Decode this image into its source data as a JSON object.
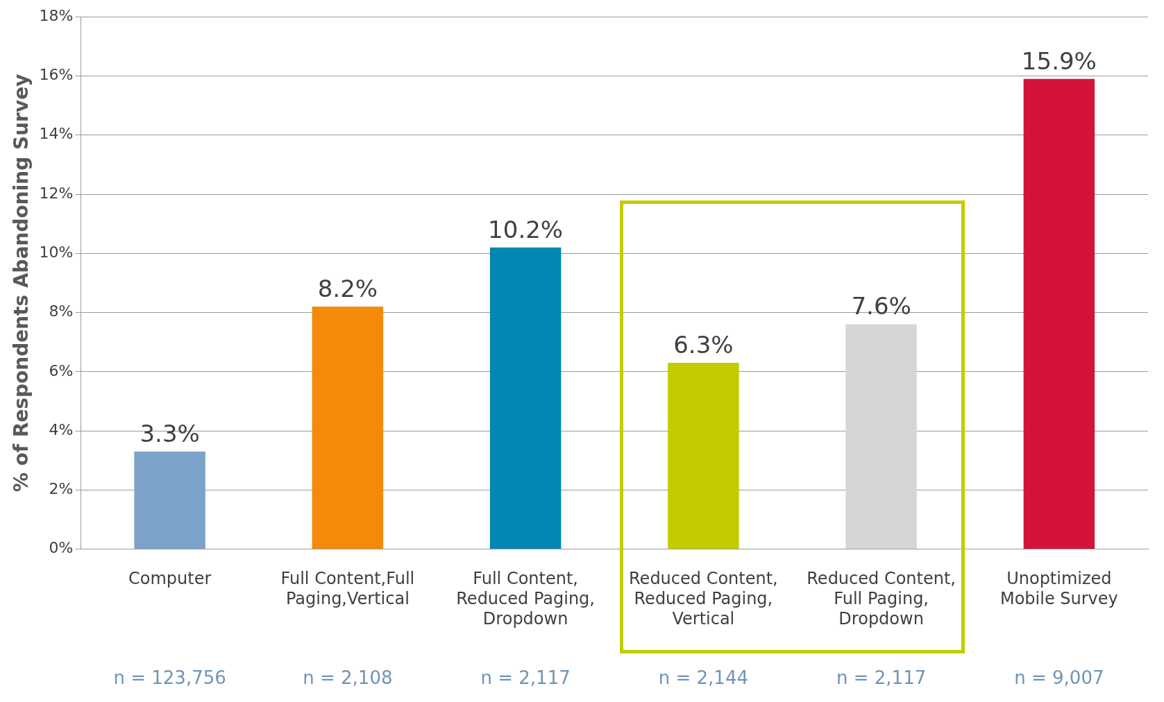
{
  "chart_data": {
    "type": "bar",
    "ylabel": "% of Respondents Abandoning Survey",
    "categories": [
      "Computer",
      "Full Content,Full Paging,Vertical",
      "Full Content, Reduced Paging, Dropdown",
      "Reduced Content, Reduced Paging, Vertical",
      "Reduced Content, Full Paging, Dropdown",
      "Unoptimized Mobile Survey"
    ],
    "values": [
      3.3,
      8.2,
      10.2,
      6.3,
      7.6,
      15.9
    ],
    "colors": [
      "#7ba3c9",
      "#f5890a",
      "#0087b2",
      "#c2cc00",
      "#d6d6d6",
      "#d4133a"
    ],
    "value_labels": [
      "3.3%",
      "8.2%",
      "10.2%",
      "6.3%",
      "7.6%",
      "15.9%"
    ],
    "ylim": [
      0,
      18
    ],
    "yticks": [
      {
        "value": 0,
        "label": "0%"
      },
      {
        "value": 2,
        "label": "2%"
      },
      {
        "value": 4,
        "label": "4%"
      },
      {
        "value": 6,
        "label": "6%"
      },
      {
        "value": 8,
        "label": "8%"
      },
      {
        "value": 10,
        "label": "10%"
      },
      {
        "value": 12,
        "label": "12%"
      },
      {
        "value": 14,
        "label": "14%"
      },
      {
        "value": 16,
        "label": "16%"
      },
      {
        "value": 18,
        "label": "18%"
      }
    ],
    "grid": "y",
    "legend": false,
    "annotations": [
      "n = 123,756",
      "n = 2,108",
      "n = 2,117",
      "n = 2,144",
      "n = 2,117",
      "n = 9,007"
    ]
  }
}
